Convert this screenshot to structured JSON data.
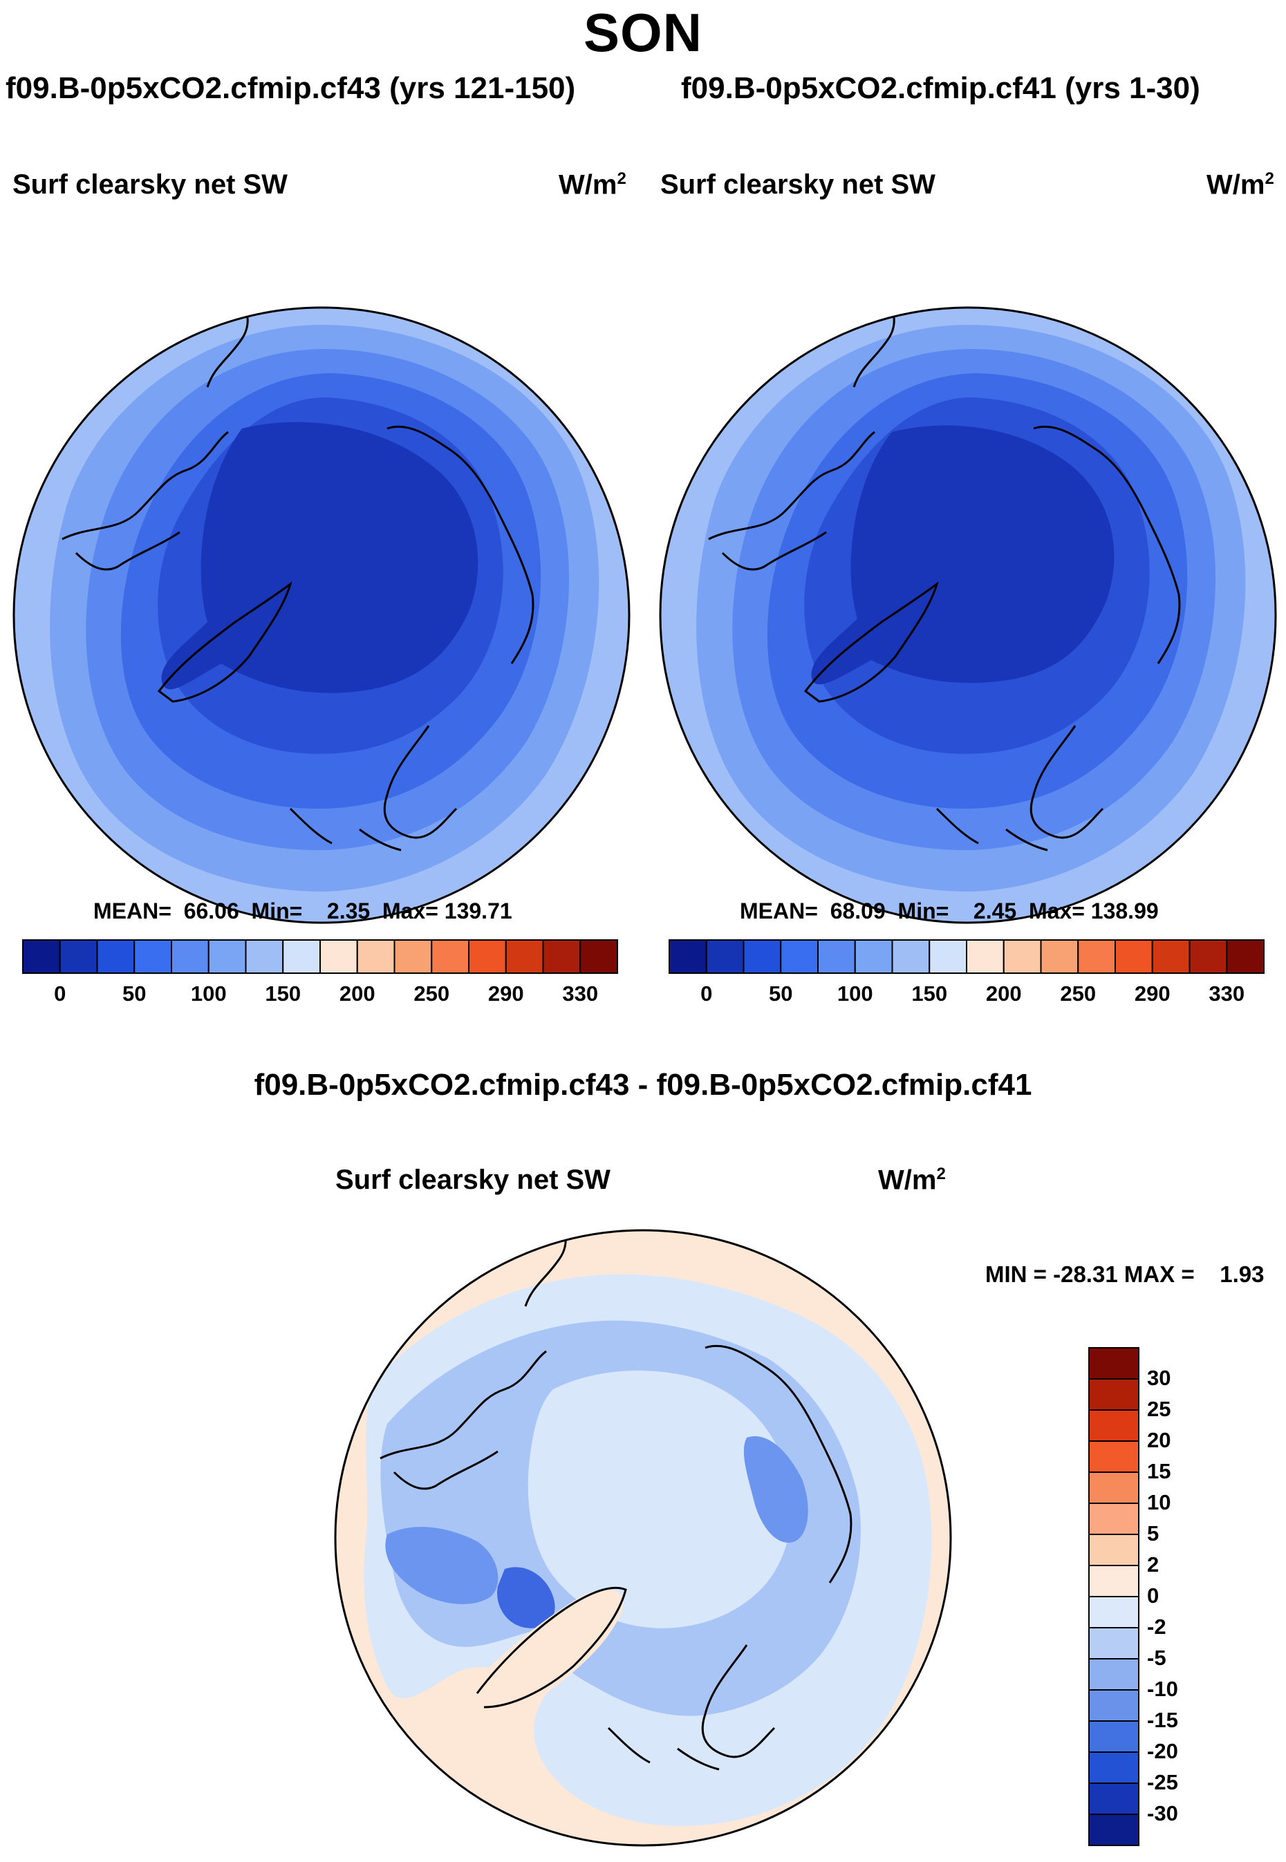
{
  "figure": {
    "season": "SON",
    "diff_title": "f09.B-0p5xCO2.cfmip.cf43 - f09.B-0p5xCO2.cfmip.cf41"
  },
  "panels": [
    {
      "case_title": "f09.B-0p5xCO2.cfmip.cf43 (yrs 121-150)",
      "variable": "Surf clearsky net SW",
      "units": "W/m",
      "units_exp": "2",
      "stats_text": "MEAN=  66.06  Min=    2.35  Max= 139.71"
    },
    {
      "case_title": "f09.B-0p5xCO2.cfmip.cf41 (yrs 1-30)",
      "variable": "Surf clearsky net SW",
      "units": "W/m",
      "units_exp": "2",
      "stats_text": "MEAN=  68.09  Min=    2.45  Max= 138.99"
    }
  ],
  "diff_panel": {
    "variable": "Surf clearsky net SW",
    "units": "W/m",
    "units_exp": "2",
    "stats_text": "MIN = -28.31 MAX =    1.93"
  },
  "colorbar_abs": {
    "colors": [
      "#0a1a8c",
      "#1434b4",
      "#2150dc",
      "#3a6ef0",
      "#5a8af2",
      "#7aa4f4",
      "#a0bef6",
      "#d2e2fa",
      "#fde6d6",
      "#fbc8a8",
      "#f8a274",
      "#f67a4a",
      "#ef5424",
      "#d23812",
      "#a81e0a",
      "#7c0a04"
    ],
    "tick_labels": [
      "0",
      "50",
      "100",
      "150",
      "200",
      "250",
      "290",
      "330"
    ]
  },
  "colorbar_diff": {
    "colors": [
      "#7c0a04",
      "#b02008",
      "#de3a14",
      "#f25a2a",
      "#f78a5a",
      "#fba882",
      "#fbcfae",
      "#fdeadc",
      "#dce9fb",
      "#b6cdf6",
      "#8eb0f0",
      "#6a92ea",
      "#4272e2",
      "#2452d4",
      "#1636b6",
      "#0c1e8c"
    ],
    "tick_labels": [
      "30",
      "25",
      "20",
      "15",
      "10",
      "5",
      "2",
      "0",
      "-2",
      "-5",
      "-10",
      "-15",
      "-20",
      "-25",
      "-30"
    ]
  },
  "map_colors": {
    "abs_outer": "#9fbdf6",
    "abs_ring2": "#7aa3f3",
    "abs_ring3": "#5a88f0",
    "abs_ring4": "#3d6ae6",
    "abs_ring5": "#2a50d6",
    "abs_core": "#1a36b8",
    "diff_bg": "#fde8d8",
    "diff_light": "#d9e7fb",
    "diff_mid": "#a9c5f6",
    "diff_dark": "#6b95ee",
    "diff_deep": "#3d67e0",
    "coast": "#000000"
  }
}
